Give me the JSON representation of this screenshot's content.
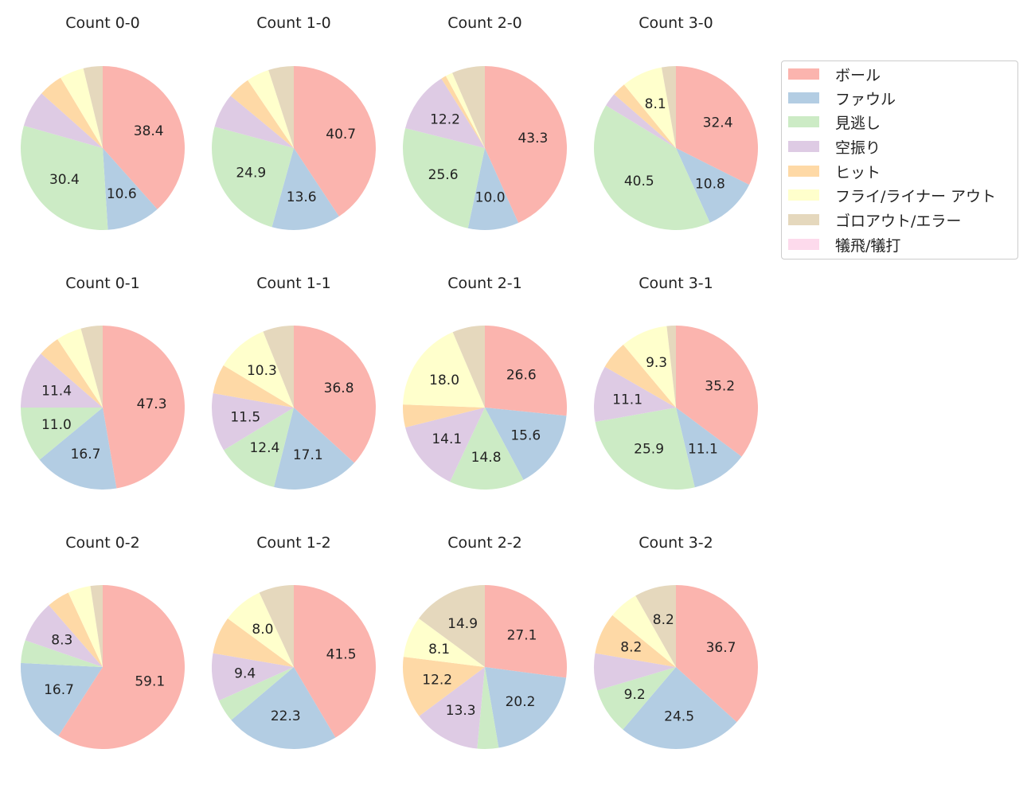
{
  "chart_data": {
    "type": "pie",
    "categories": [
      "ボール",
      "ファウル",
      "見逃し",
      "空振り",
      "ヒット",
      "フライ/ライナー アウト",
      "ゴロアウト/エラー",
      "犠飛/犠打"
    ],
    "colors": [
      "#fbb4ae",
      "#b3cde3",
      "#ccebc5",
      "#decbe4",
      "#fed9a6",
      "#ffffcc",
      "#e5d8bd",
      "#fddaec"
    ],
    "legend_position": "top-right",
    "panels": [
      {
        "title": "Count 0-0",
        "values": [
          38.4,
          10.6,
          30.4,
          7.2,
          4.8,
          4.8,
          3.8,
          0
        ]
      },
      {
        "title": "Count 1-0",
        "values": [
          40.7,
          13.6,
          24.9,
          6.8,
          4.5,
          4.5,
          5.0,
          0
        ]
      },
      {
        "title": "Count 2-0",
        "values": [
          43.3,
          10.0,
          25.6,
          12.2,
          1.0,
          1.4,
          6.5,
          0
        ]
      },
      {
        "title": "Count 3-0",
        "values": [
          32.4,
          10.8,
          40.5,
          2.7,
          2.7,
          8.1,
          2.8,
          0
        ]
      },
      {
        "title": "Count 0-1",
        "values": [
          47.3,
          16.7,
          11.0,
          11.4,
          4.3,
          5.0,
          4.3,
          0
        ]
      },
      {
        "title": "Count 1-1",
        "values": [
          36.8,
          17.1,
          12.4,
          11.5,
          5.8,
          10.3,
          6.1,
          0
        ]
      },
      {
        "title": "Count 2-1",
        "values": [
          26.6,
          15.6,
          14.8,
          14.1,
          4.5,
          18.0,
          6.4,
          0
        ]
      },
      {
        "title": "Count 3-1",
        "values": [
          35.2,
          11.1,
          25.9,
          11.1,
          5.6,
          9.3,
          1.8,
          0
        ]
      },
      {
        "title": "Count 0-2",
        "values": [
          59.1,
          16.7,
          4.5,
          8.3,
          4.5,
          4.5,
          2.4,
          0
        ]
      },
      {
        "title": "Count 1-2",
        "values": [
          41.5,
          22.3,
          4.5,
          9.4,
          7.4,
          8.0,
          6.9,
          0
        ]
      },
      {
        "title": "Count 2-2",
        "values": [
          27.1,
          20.2,
          4.2,
          13.3,
          12.2,
          8.1,
          14.9,
          0
        ]
      },
      {
        "title": "Count 3-2",
        "values": [
          36.7,
          24.5,
          9.2,
          7.3,
          8.2,
          5.9,
          8.2,
          0
        ]
      }
    ]
  }
}
